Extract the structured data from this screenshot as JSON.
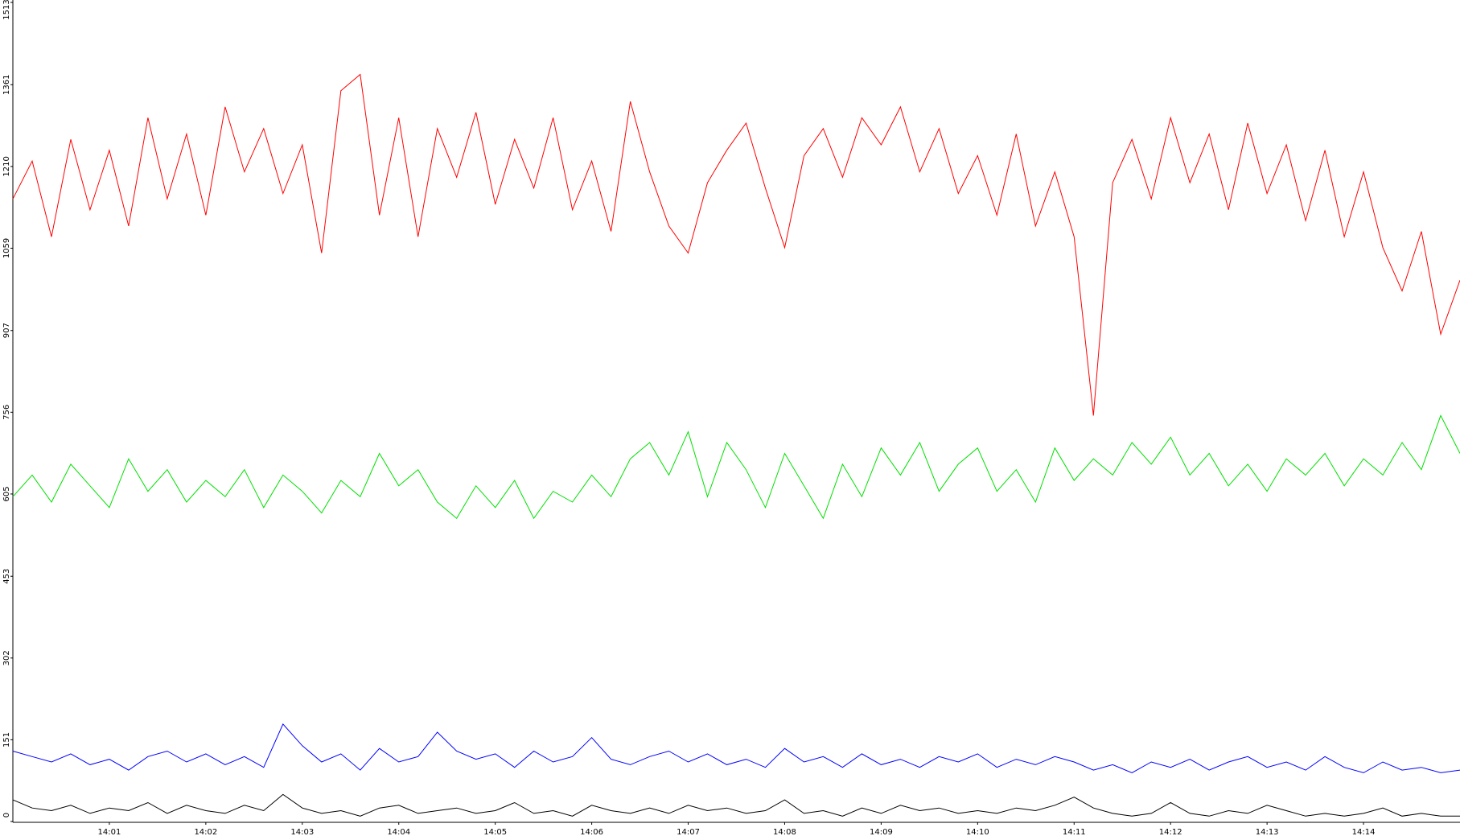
{
  "chart_data": {
    "type": "line",
    "x": [
      840,
      840.2,
      840.4,
      840.6,
      840.8,
      841,
      841.2,
      841.4,
      841.6,
      841.8,
      842,
      842.2,
      842.4,
      842.6,
      842.8,
      843,
      843.2,
      843.4,
      843.6,
      843.8,
      844,
      844.2,
      844.4,
      844.6,
      844.8,
      845,
      845.2,
      845.4,
      845.6,
      845.8,
      846,
      846.2,
      846.4,
      846.6,
      846.8,
      847,
      847.2,
      847.4,
      847.6,
      847.8,
      848,
      848.2,
      848.4,
      848.6,
      848.8,
      849,
      849.2,
      849.4,
      849.6,
      849.8,
      850,
      850.2,
      850.4,
      850.6,
      850.8,
      851,
      851.2,
      851.4,
      851.6,
      851.8,
      852,
      852.2,
      852.4,
      852.6,
      852.8,
      853,
      853.2,
      853.4,
      853.6,
      853.8,
      854,
      854.2,
      854.4,
      854.6,
      854.8,
      855
    ],
    "series": [
      {
        "color": "#ff0000",
        "values": [
          1150,
          1220,
          1080,
          1260,
          1130,
          1240,
          1100,
          1300,
          1150,
          1270,
          1120,
          1320,
          1200,
          1280,
          1160,
          1250,
          1050,
          1350,
          1380,
          1120,
          1300,
          1080,
          1280,
          1190,
          1310,
          1140,
          1260,
          1170,
          1300,
          1130,
          1220,
          1090,
          1330,
          1200,
          1100,
          1050,
          1180,
          1240,
          1290,
          1170,
          1060,
          1230,
          1280,
          1190,
          1300,
          1250,
          1320,
          1200,
          1280,
          1160,
          1230,
          1120,
          1270,
          1100,
          1200,
          1080,
          750,
          1180,
          1260,
          1150,
          1300,
          1180,
          1270,
          1130,
          1290,
          1160,
          1250,
          1110,
          1240,
          1080,
          1200,
          1060,
          980,
          1090,
          900,
          1000
        ]
      },
      {
        "color": "#00e000",
        "values": [
          600,
          640,
          590,
          660,
          620,
          580,
          670,
          610,
          650,
          590,
          630,
          600,
          650,
          580,
          640,
          610,
          570,
          630,
          600,
          680,
          620,
          650,
          590,
          560,
          620,
          580,
          630,
          560,
          610,
          590,
          640,
          600,
          670,
          700,
          640,
          720,
          600,
          700,
          650,
          580,
          680,
          620,
          560,
          660,
          600,
          690,
          640,
          700,
          610,
          660,
          690,
          610,
          650,
          590,
          690,
          630,
          670,
          640,
          700,
          660,
          710,
          640,
          680,
          620,
          660,
          610,
          670,
          640,
          680,
          620,
          670,
          640,
          700,
          650,
          750,
          680
        ]
      },
      {
        "color": "#0000ff",
        "values": [
          130,
          120,
          110,
          125,
          105,
          115,
          95,
          120,
          130,
          110,
          125,
          105,
          120,
          100,
          180,
          140,
          110,
          125,
          95,
          135,
          110,
          120,
          165,
          130,
          115,
          125,
          100,
          130,
          110,
          120,
          155,
          115,
          105,
          120,
          130,
          110,
          125,
          105,
          115,
          100,
          135,
          110,
          120,
          100,
          125,
          105,
          115,
          100,
          120,
          110,
          125,
          100,
          115,
          105,
          120,
          110,
          95,
          105,
          90,
          110,
          100,
          115,
          95,
          110,
          120,
          100,
          110,
          95,
          120,
          100,
          90,
          110,
          95,
          100,
          90,
          95
        ]
      },
      {
        "color": "#000000",
        "values": [
          40,
          25,
          20,
          30,
          15,
          25,
          20,
          35,
          15,
          30,
          20,
          15,
          30,
          20,
          50,
          25,
          15,
          20,
          10,
          25,
          30,
          15,
          20,
          25,
          15,
          20,
          35,
          15,
          20,
          10,
          30,
          20,
          15,
          25,
          15,
          30,
          20,
          25,
          15,
          20,
          40,
          15,
          20,
          10,
          25,
          15,
          30,
          20,
          25,
          15,
          20,
          15,
          25,
          20,
          30,
          45,
          25,
          15,
          10,
          15,
          35,
          15,
          10,
          20,
          15,
          30,
          20,
          10,
          15,
          10,
          15,
          25,
          10,
          15,
          10,
          10
        ]
      }
    ],
    "xlim": [
      840,
      855
    ],
    "xticks": [
      {
        "value": 841,
        "label": "14:01"
      },
      {
        "value": 842,
        "label": "14:02"
      },
      {
        "value": 843,
        "label": "14:03"
      },
      {
        "value": 844,
        "label": "14:04"
      },
      {
        "value": 845,
        "label": "14:05"
      },
      {
        "value": 846,
        "label": "14:06"
      },
      {
        "value": 847,
        "label": "14:07"
      },
      {
        "value": 848,
        "label": "14:08"
      },
      {
        "value": 849,
        "label": "14:09"
      },
      {
        "value": 850,
        "label": "14:10"
      },
      {
        "value": 851,
        "label": "14:11"
      },
      {
        "value": 852,
        "label": "14:12"
      },
      {
        "value": 853,
        "label": "14:13"
      },
      {
        "value": 854,
        "label": "14:14"
      }
    ],
    "ylim": [
      0,
      1513
    ],
    "yticks": [
      0,
      151,
      302,
      453,
      605,
      756,
      907,
      1059,
      1210,
      1361,
      1513
    ]
  }
}
